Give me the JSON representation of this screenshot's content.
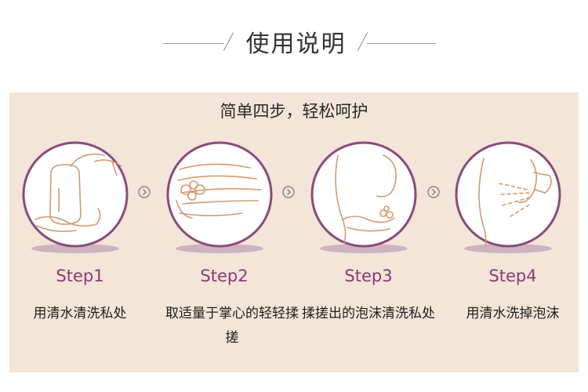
{
  "header": {
    "title": "使用说明"
  },
  "panel": {
    "subtitle": "简单四步，轻松呵护"
  },
  "steps": [
    {
      "label": "Step1",
      "text": "用清水清洗私处",
      "icon": "rinse-bottle-icon"
    },
    {
      "label": "Step2",
      "text": "取适量于掌心的轻轻揉搓",
      "icon": "lather-hands-icon"
    },
    {
      "label": "Step3",
      "text": "揉搓出的泡沫清洗私处",
      "icon": "foam-wash-icon"
    },
    {
      "label": "Step4",
      "text": "用清水洗掉泡沫",
      "icon": "water-rinse-icon"
    }
  ],
  "colors": {
    "accent": "#8d3a73",
    "panel_bg": "#f3e5d7",
    "outline": "#d49a6e",
    "circle_border": "#8a4a7e"
  },
  "separator_icon": "chevron-right-circle-icon"
}
